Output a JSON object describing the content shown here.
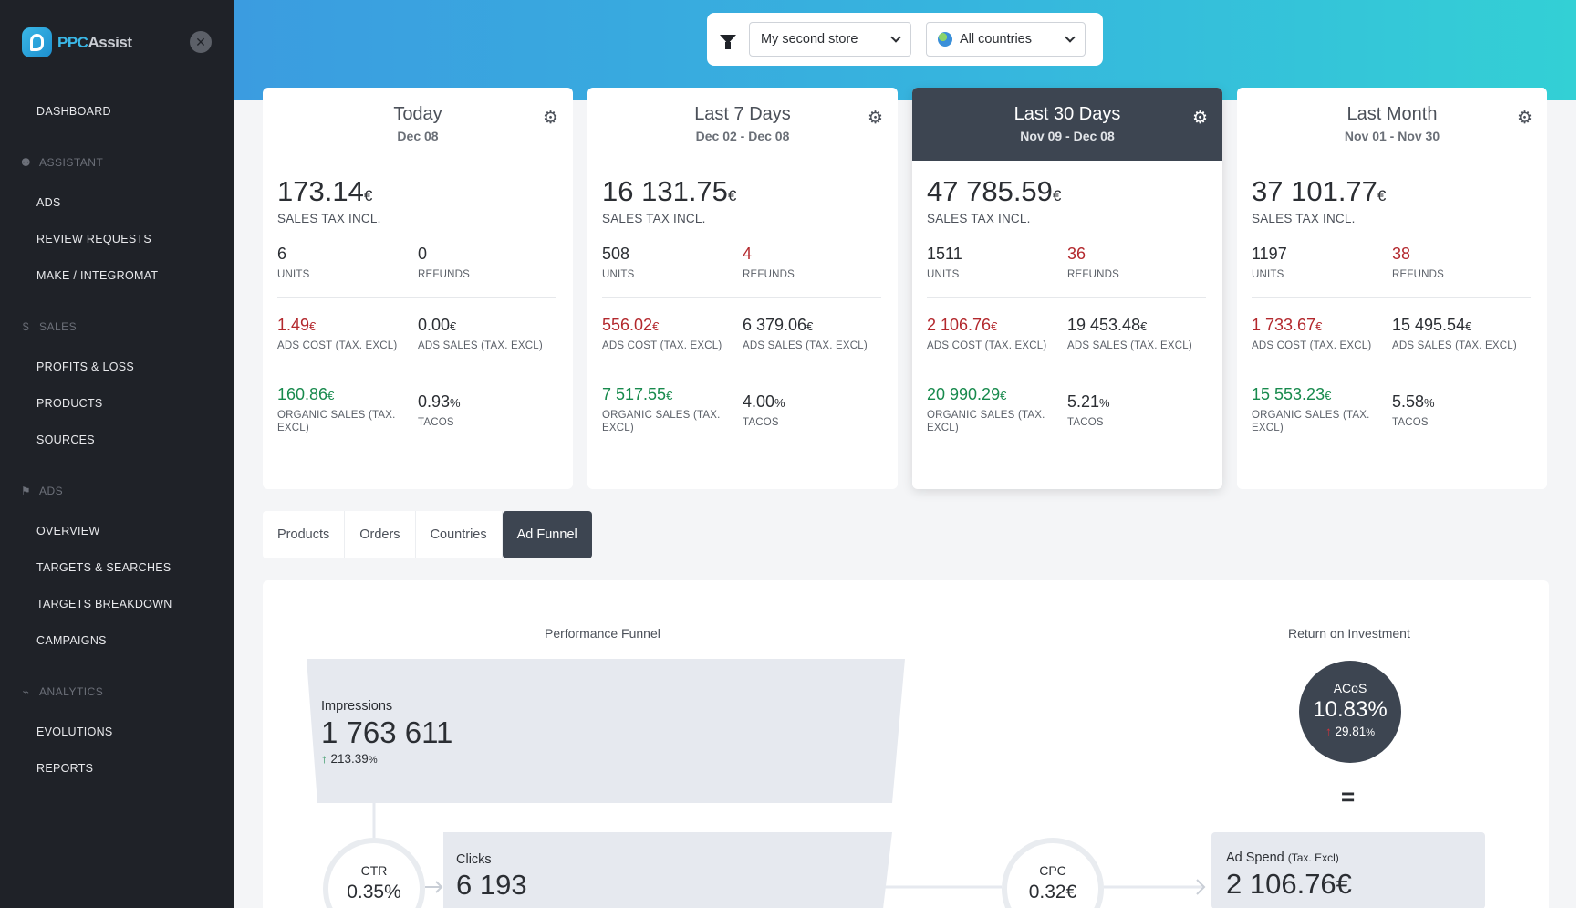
{
  "app": {
    "logo_a": "PPC",
    "logo_b": "Assist"
  },
  "sidebar": {
    "dashboard": "DASHBOARD",
    "sections": [
      {
        "label": "ASSISTANT",
        "items": [
          "ADS",
          "REVIEW REQUESTS",
          "MAKE / INTEGROMAT"
        ]
      },
      {
        "label": "SALES",
        "items": [
          "PROFITS & LOSS",
          "PRODUCTS",
          "SOURCES"
        ]
      },
      {
        "label": "ADS",
        "items": [
          "OVERVIEW",
          "TARGETS & SEARCHES",
          "TARGETS BREAKDOWN",
          "CAMPAIGNS"
        ]
      },
      {
        "label": "ANALYTICS",
        "items": [
          "EVOLUTIONS",
          "REPORTS"
        ]
      }
    ]
  },
  "filters": {
    "store": "My second store",
    "country": "All countries"
  },
  "cards": [
    {
      "title": "Today",
      "date": "Dec 08",
      "sales": "173.14",
      "currency": "€",
      "sales_label": "SALES TAX INCL.",
      "units": "6",
      "units_label": "UNITS",
      "refunds": "0",
      "refunds_label": "REFUNDS",
      "ads_cost": "1.49",
      "ads_cost_label": "ADS COST (TAX. EXCL)",
      "ads_sales": "0.00",
      "ads_sales_label": "ADS SALES (TAX. EXCL)",
      "organic": "160.86",
      "organic_label": "ORGANIC SALES (TAX. EXCL)",
      "tacos": "0.93",
      "pct": "%",
      "tacos_label": "TACOS"
    },
    {
      "title": "Last 7 Days",
      "date": "Dec 02 - Dec 08",
      "sales": "16 131.75",
      "currency": "€",
      "sales_label": "SALES TAX INCL.",
      "units": "508",
      "units_label": "UNITS",
      "refunds": "4",
      "refunds_label": "REFUNDS",
      "ads_cost": "556.02",
      "ads_cost_label": "ADS COST (TAX. EXCL)",
      "ads_sales": "6 379.06",
      "ads_sales_label": "ADS SALES (TAX. EXCL)",
      "organic": "7 517.55",
      "organic_label": "ORGANIC SALES (TAX. EXCL)",
      "tacos": "4.00",
      "pct": "%",
      "tacos_label": "TACOS"
    },
    {
      "title": "Last 30 Days",
      "date": "Nov 09 - Dec 08",
      "sales": "47 785.59",
      "currency": "€",
      "sales_label": "SALES TAX INCL.",
      "units": "1511",
      "units_label": "UNITS",
      "refunds": "36",
      "refunds_label": "REFUNDS",
      "ads_cost": "2 106.76",
      "ads_cost_label": "ADS COST (TAX. EXCL)",
      "ads_sales": "19 453.48",
      "ads_sales_label": "ADS SALES (TAX. EXCL)",
      "organic": "20 990.29",
      "organic_label": "ORGANIC SALES (TAX. EXCL)",
      "tacos": "5.21",
      "pct": "%",
      "tacos_label": "TACOS"
    },
    {
      "title": "Last Month",
      "date": "Nov 01 - Nov 30",
      "sales": "37 101.77",
      "currency": "€",
      "sales_label": "SALES TAX INCL.",
      "units": "1197",
      "units_label": "UNITS",
      "refunds": "38",
      "refunds_label": "REFUNDS",
      "ads_cost": "1 733.67",
      "ads_cost_label": "ADS COST (TAX. EXCL)",
      "ads_sales": "15 495.54",
      "ads_sales_label": "ADS SALES (TAX. EXCL)",
      "organic": "15 553.23",
      "organic_label": "ORGANIC SALES (TAX. EXCL)",
      "tacos": "5.58",
      "pct": "%",
      "tacos_label": "TACOS"
    }
  ],
  "tabs": [
    "Products",
    "Orders",
    "Countries",
    "Ad Funnel"
  ],
  "funnel": {
    "title": "Performance Funnel",
    "roi_title": "Return on Investment",
    "impressions_label": "Impressions",
    "impressions": "1 763 611",
    "impressions_change": "213.39",
    "pct": "%",
    "ctr_label": "CTR",
    "ctr": "0.35%",
    "clicks_label": "Clicks",
    "clicks": "6 193",
    "cpc_label": "CPC",
    "cpc": "0.32€",
    "acos_label": "ACoS",
    "acos": "10.83%",
    "acos_change": "29.81",
    "equals": "=",
    "ad_spend_label": "Ad Spend",
    "ad_spend_suffix": "(Tax. Excl)",
    "ad_spend": "2 106.76€"
  },
  "colors": {
    "accent_dark": "#3d4551",
    "negative": "#b3282d",
    "positive": "#188a4d",
    "sidebar": "#1f2228"
  }
}
